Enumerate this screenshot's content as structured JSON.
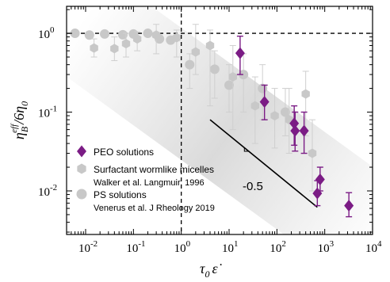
{
  "chart_data": {
    "type": "scatter",
    "xscale": "log",
    "yscale": "log",
    "xlim": [
      0.004,
      10000
    ],
    "ylim": [
      0.0028,
      2.2
    ],
    "xlabel": "τ0 ε̇",
    "ylabel": "ηB^eff / 6η0",
    "x_tick_labels": [
      {
        "value": 0.01,
        "base": "10",
        "exp": "-2"
      },
      {
        "value": 0.1,
        "base": "10",
        "exp": "-1"
      },
      {
        "value": 1,
        "base": "10",
        "exp": "0"
      },
      {
        "value": 10,
        "base": "10",
        "exp": "1"
      },
      {
        "value": 100,
        "base": "10",
        "exp": "2"
      },
      {
        "value": 1000,
        "base": "10",
        "exp": "3"
      },
      {
        "value": 10000,
        "base": "10",
        "exp": "4"
      }
    ],
    "y_tick_labels": [
      {
        "value": 0.01,
        "base": "10",
        "exp": "-2"
      },
      {
        "value": 0.1,
        "base": "10",
        "exp": "-1"
      },
      {
        "value": 1,
        "base": "10",
        "exp": "0"
      }
    ],
    "reference_lines": {
      "y": 1,
      "x": 1
    },
    "slope_line": {
      "x": [
        4,
        700
      ],
      "y": [
        0.08,
        0.0062
      ],
      "slope": -0.5,
      "label": "-0.5"
    },
    "series": [
      {
        "name": "PEO solutions",
        "marker": "diamond",
        "color": "#7b1c85",
        "points": [
          {
            "x": 17,
            "y": 0.56,
            "lo": 0.3,
            "hi": 0.92
          },
          {
            "x": 55,
            "y": 0.135,
            "lo": 0.08,
            "hi": 0.22
          },
          {
            "x": 230,
            "y": 0.072,
            "lo": 0.038,
            "hi": 0.12
          },
          {
            "x": 240,
            "y": 0.058,
            "lo": 0.032,
            "hi": 0.1
          },
          {
            "x": 370,
            "y": 0.058,
            "lo": 0.03,
            "hi": 0.1
          },
          {
            "x": 700,
            "y": 0.0093,
            "lo": 0.0065,
            "hi": 0.0135
          },
          {
            "x": 800,
            "y": 0.014,
            "lo": 0.01,
            "hi": 0.02
          },
          {
            "x": 3200,
            "y": 0.0065,
            "lo": 0.0047,
            "hi": 0.0095
          }
        ]
      },
      {
        "name": "Surfactant wormlike micelles",
        "note": "Walker et al. Langmuir, 1996",
        "marker": "hexagon",
        "color": "#c8c8c8",
        "points": [
          {
            "x": 0.015,
            "y": 0.65,
            "lo": 0.5,
            "hi": 0.85
          },
          {
            "x": 0.04,
            "y": 0.64,
            "lo": 0.45,
            "hi": 0.9
          },
          {
            "x": 0.07,
            "y": 0.74,
            "lo": 0.5,
            "hi": 1.0
          },
          {
            "x": 0.12,
            "y": 0.85,
            "lo": 0.6,
            "hi": 1.05
          },
          {
            "x": 0.3,
            "y": 0.95,
            "lo": 0.55,
            "hi": 1.3
          },
          {
            "x": 0.8,
            "y": 0.88,
            "lo": 0.5,
            "hi": 1.1
          },
          {
            "x": 2,
            "y": 0.58,
            "lo": 0.3,
            "hi": 1.3
          },
          {
            "x": 4,
            "y": 0.7,
            "lo": 0.12,
            "hi": 1.1
          },
          {
            "x": 12,
            "y": 0.28,
            "lo": 0.06,
            "hi": 0.7
          },
          {
            "x": 35,
            "y": 0.12,
            "lo": 0.04,
            "hi": 0.28
          },
          {
            "x": 90,
            "y": 0.09,
            "lo": 0.035,
            "hi": 0.2
          },
          {
            "x": 180,
            "y": 0.08,
            "lo": 0.03,
            "hi": 0.2
          },
          {
            "x": 400,
            "y": 0.17,
            "lo": 0.05,
            "hi": 0.33
          },
          {
            "x": 550,
            "y": 0.03,
            "lo": 0.01,
            "hi": 0.08
          }
        ]
      },
      {
        "name": "PS solutions",
        "note": "Venerus et al. J Rheology 2019",
        "marker": "circle",
        "color": "#c8c8c8",
        "points": [
          {
            "x": 0.006,
            "y": 1.0
          },
          {
            "x": 0.012,
            "y": 0.95
          },
          {
            "x": 0.025,
            "y": 0.98
          },
          {
            "x": 0.06,
            "y": 0.96
          },
          {
            "x": 0.1,
            "y": 0.98
          },
          {
            "x": 0.2,
            "y": 1.0
          },
          {
            "x": 0.35,
            "y": 0.85
          },
          {
            "x": 0.6,
            "y": 0.82
          },
          {
            "x": 1.5,
            "y": 0.4,
            "lo": 0.2,
            "hi": 0.55
          },
          {
            "x": 5,
            "y": 0.35,
            "lo": 0.15,
            "hi": 0.6
          },
          {
            "x": 10,
            "y": 0.22,
            "lo": 0.1,
            "hi": 0.4
          },
          {
            "x": 20,
            "y": 0.3,
            "lo": 0.1,
            "hi": 0.55
          },
          {
            "x": 50,
            "y": 0.2,
            "lo": 0.08,
            "hi": 0.4
          },
          {
            "x": 150,
            "y": 0.1,
            "lo": 0.05,
            "hi": 0.2
          }
        ]
      }
    ],
    "legend": {
      "placement": "lower-left",
      "items": [
        {
          "marker": "diamond",
          "color": "#7b1c85",
          "label": "PEO solutions",
          "sub": ""
        },
        {
          "marker": "hexagon",
          "color": "#c8c8c8",
          "label": "Surfactant wormlike micelles",
          "sub": "Walker et al. Langmuir, 1996"
        },
        {
          "marker": "circle",
          "color": "#c8c8c8",
          "label": "PS solutions",
          "sub": "Venerus et al. J Rheology 2019"
        }
      ]
    }
  }
}
